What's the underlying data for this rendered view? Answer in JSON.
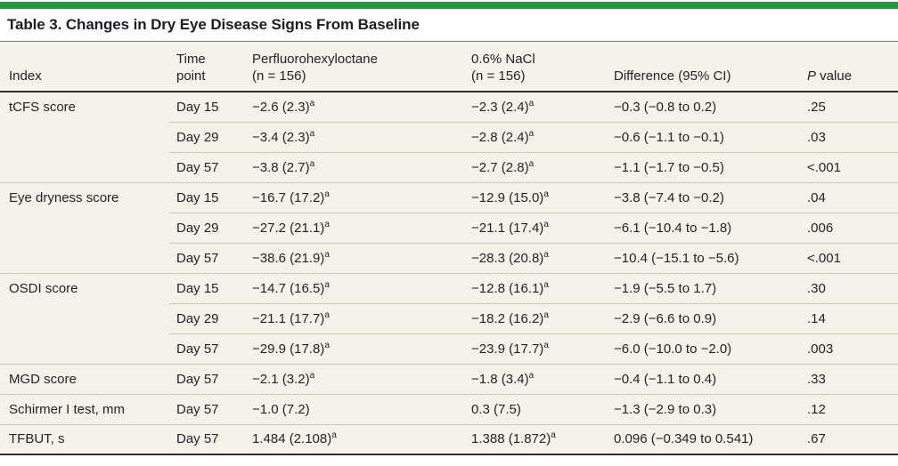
{
  "colors": {
    "accent_bar_green": "#289740",
    "table_background": "#f4f2e9"
  },
  "table": {
    "title": "Table 3. Changes in Dry Eye Disease Signs From Baseline",
    "header": {
      "index": "Index",
      "time_line1": "Time",
      "time_line2": "point",
      "pfho_line1": "Perfluorohexyloctane",
      "pfho_line2": "(n = 156)",
      "nacl_line1": "0.6% NaCl",
      "nacl_line2": "(n = 156)",
      "difference": "Difference (95% CI)",
      "p_italic": "P",
      "p_rest": " value"
    },
    "footnote_marker": "a",
    "rows": [
      {
        "index": "tCFS score",
        "time": "Day 15",
        "pfho": "−2.6 (2.3)",
        "pfho_sup": "a",
        "nacl": "−2.3 (2.4)",
        "nacl_sup": "a",
        "diff": "−0.3 (−0.8 to 0.2)",
        "p": ".25",
        "group_start": true
      },
      {
        "index": "",
        "time": "Day 29",
        "pfho": "−3.4 (2.3)",
        "pfho_sup": "a",
        "nacl": "−2.8 (2.4)",
        "nacl_sup": "a",
        "diff": "−0.6 (−1.1 to −0.1)",
        "p": ".03",
        "group_start": false
      },
      {
        "index": "",
        "time": "Day 57",
        "pfho": "−3.8 (2.7)",
        "pfho_sup": "a",
        "nacl": "−2.7 (2.8)",
        "nacl_sup": "a",
        "diff": "−1.1 (−1.7 to −0.5)",
        "p": "<.001",
        "group_start": false
      },
      {
        "index": "Eye dryness score",
        "time": "Day 15",
        "pfho": "−16.7 (17.2)",
        "pfho_sup": "a",
        "nacl": "−12.9 (15.0)",
        "nacl_sup": "a",
        "diff": "−3.8 (−7.4 to −0.2)",
        "p": ".04",
        "group_start": true
      },
      {
        "index": "",
        "time": "Day 29",
        "pfho": "−27.2 (21.1)",
        "pfho_sup": "a",
        "nacl": "−21.1 (17.4)",
        "nacl_sup": "a",
        "diff": "−6.1 (−10.4 to −1.8)",
        "p": ".006",
        "group_start": false
      },
      {
        "index": "",
        "time": "Day 57",
        "pfho": "−38.6 (21.9)",
        "pfho_sup": "a",
        "nacl": "−28.3 (20.8)",
        "nacl_sup": "a",
        "diff": "−10.4 (−15.1 to −5.6)",
        "p": "<.001",
        "group_start": false
      },
      {
        "index": "OSDI score",
        "time": "Day 15",
        "pfho": "−14.7 (16.5)",
        "pfho_sup": "a",
        "nacl": "−12.8 (16.1)",
        "nacl_sup": "a",
        "diff": "−1.9 (−5.5 to 1.7)",
        "p": ".30",
        "group_start": true
      },
      {
        "index": "",
        "time": "Day 29",
        "pfho": "−21.1 (17.7)",
        "pfho_sup": "a",
        "nacl": "−18.2 (16.2)",
        "nacl_sup": "a",
        "diff": "−2.9 (−6.6 to 0.9)",
        "p": ".14",
        "group_start": false
      },
      {
        "index": "",
        "time": "Day 57",
        "pfho": "−29.9 (17.8)",
        "pfho_sup": "a",
        "nacl": "−23.9 (17.7)",
        "nacl_sup": "a",
        "diff": "−6.0 (−10.0 to −2.0)",
        "p": ".003",
        "group_start": false
      },
      {
        "index": "MGD score",
        "time": "Day 57",
        "pfho": "−2.1 (3.2)",
        "pfho_sup": "a",
        "nacl": "−1.8 (3.4)",
        "nacl_sup": "a",
        "diff": "−0.4 (−1.1 to 0.4)",
        "p": ".33",
        "group_start": true
      },
      {
        "index": "Schirmer I test, mm",
        "time": "Day 57",
        "pfho": "−1.0 (7.2)",
        "pfho_sup": "",
        "nacl": "0.3 (7.5)",
        "nacl_sup": "",
        "diff": "−1.3 (−2.9 to 0.3)",
        "p": ".12",
        "group_start": true
      },
      {
        "index": "TFBUT, s",
        "time": "Day 57",
        "pfho": "1.484 (2.108)",
        "pfho_sup": "a",
        "nacl": "1.388 (1.872)",
        "nacl_sup": "a",
        "diff": "0.096 (−0.349 to 0.541)",
        "p": ".67",
        "group_start": true
      }
    ]
  }
}
